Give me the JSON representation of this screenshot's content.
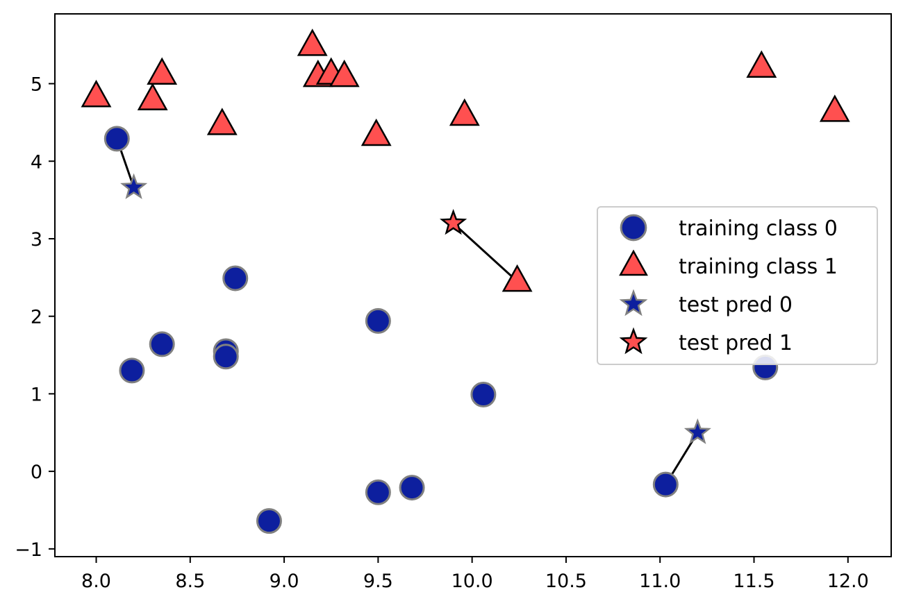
{
  "chart_data": {
    "type": "scatter",
    "title": "",
    "xlabel": "",
    "ylabel": "",
    "xlim": [
      7.78,
      12.23
    ],
    "ylim": [
      -1.1,
      5.9
    ],
    "xticks": [
      8.0,
      8.5,
      9.0,
      9.5,
      10.0,
      10.5,
      11.0,
      11.5,
      12.0
    ],
    "xtick_labels": [
      "8.0",
      "8.5",
      "9.0",
      "9.5",
      "10.0",
      "10.5",
      "11.0",
      "11.5",
      "12.0"
    ],
    "yticks": [
      -1,
      0,
      1,
      2,
      3,
      4,
      5
    ],
    "ytick_labels": [
      "−1",
      "0",
      "1",
      "2",
      "3",
      "4",
      "5"
    ],
    "grid": false,
    "legend_position": "center-right",
    "series": [
      {
        "name": "training class 0",
        "marker": "circle",
        "fill": "#0d1f9e",
        "edge": "#808080",
        "points": [
          {
            "x": 8.11,
            "y": 4.29
          },
          {
            "x": 8.19,
            "y": 1.3
          },
          {
            "x": 8.35,
            "y": 1.64
          },
          {
            "x": 8.69,
            "y": 1.55
          },
          {
            "x": 8.69,
            "y": 1.48
          },
          {
            "x": 8.74,
            "y": 2.49
          },
          {
            "x": 8.92,
            "y": -0.64
          },
          {
            "x": 9.5,
            "y": 1.94
          },
          {
            "x": 9.5,
            "y": -0.27
          },
          {
            "x": 9.68,
            "y": -0.21
          },
          {
            "x": 10.06,
            "y": 0.99
          },
          {
            "x": 11.03,
            "y": -0.17
          },
          {
            "x": 11.56,
            "y": 1.34
          }
        ]
      },
      {
        "name": "training class 1",
        "marker": "triangle",
        "fill": "#ff5050",
        "edge": "#000000",
        "points": [
          {
            "x": 8.0,
            "y": 4.83
          },
          {
            "x": 8.3,
            "y": 4.79
          },
          {
            "x": 8.35,
            "y": 5.12
          },
          {
            "x": 8.67,
            "y": 4.47
          },
          {
            "x": 9.15,
            "y": 5.49
          },
          {
            "x": 9.18,
            "y": 5.09
          },
          {
            "x": 9.25,
            "y": 5.12
          },
          {
            "x": 9.32,
            "y": 5.09
          },
          {
            "x": 9.49,
            "y": 4.33
          },
          {
            "x": 9.96,
            "y": 4.59
          },
          {
            "x": 10.24,
            "y": 2.45
          },
          {
            "x": 11.54,
            "y": 5.21
          },
          {
            "x": 11.93,
            "y": 4.64
          }
        ]
      },
      {
        "name": "test pred 0",
        "marker": "star",
        "fill": "#0d1f9e",
        "edge": "#808080",
        "points": [
          {
            "x": 8.2,
            "y": 3.66
          },
          {
            "x": 11.2,
            "y": 0.5
          }
        ]
      },
      {
        "name": "test pred 1",
        "marker": "star",
        "fill": "#ff5050",
        "edge": "#000000",
        "points": [
          {
            "x": 9.9,
            "y": 3.2
          }
        ]
      }
    ],
    "neighbor_lines": [
      {
        "from": {
          "x": 8.2,
          "y": 3.66
        },
        "to": {
          "x": 8.11,
          "y": 4.29
        }
      },
      {
        "from": {
          "x": 9.9,
          "y": 3.2
        },
        "to": {
          "x": 10.24,
          "y": 2.45
        }
      },
      {
        "from": {
          "x": 11.2,
          "y": 0.5
        },
        "to": {
          "x": 11.03,
          "y": -0.17
        }
      }
    ],
    "legend": [
      {
        "label": "training class 0",
        "marker": "circle",
        "fill": "#0d1f9e",
        "edge": "#808080"
      },
      {
        "label": "training class 1",
        "marker": "triangle",
        "fill": "#ff5050",
        "edge": "#000000"
      },
      {
        "label": "test pred 0",
        "marker": "star",
        "fill": "#0d1f9e",
        "edge": "#808080"
      },
      {
        "label": "test pred 1",
        "marker": "star",
        "fill": "#ff5050",
        "edge": "#000000"
      }
    ]
  }
}
